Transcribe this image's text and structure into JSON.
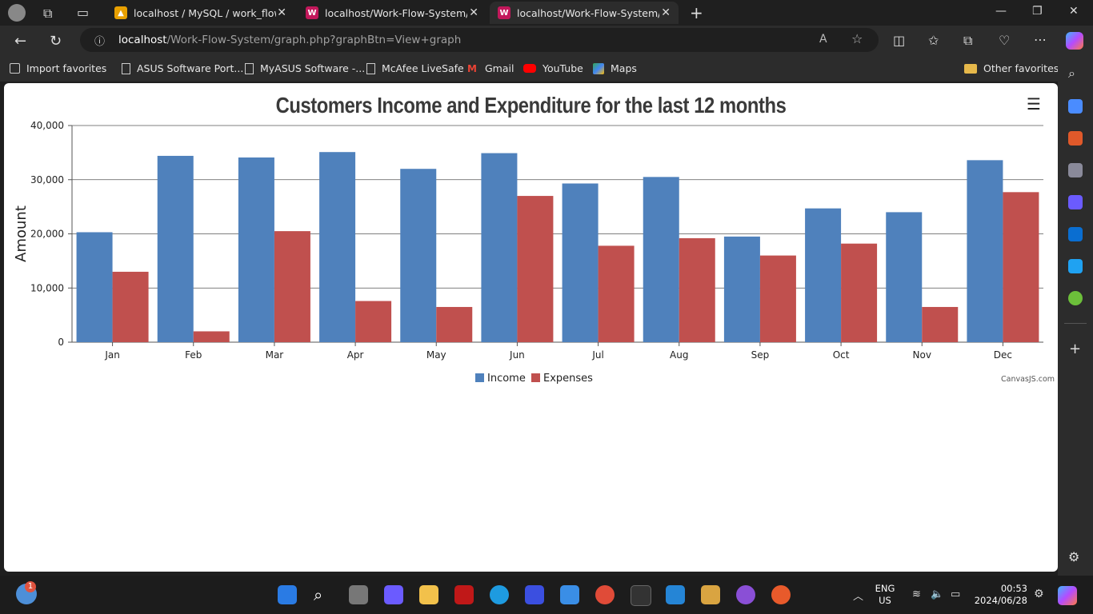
{
  "browser": {
    "tabs": [
      {
        "title": "localhost / MySQL / work_flow_sy",
        "color": "#e8a000"
      },
      {
        "title": "localhost/Work-Flow-System/set",
        "color": "#c2185b"
      },
      {
        "title": "localhost/Work-Flow-System/gra",
        "color": "#c2185b"
      }
    ],
    "url_host": "localhost",
    "url_path": "/Work-Flow-System/graph.php?graphBtn=View+graph",
    "favorites": [
      {
        "label": "Import favorites",
        "icon": "import-icon"
      },
      {
        "label": "ASUS Software Port...",
        "icon": "page-icon"
      },
      {
        "label": "MyASUS Software -...",
        "icon": "page-icon"
      },
      {
        "label": "McAfee LiveSafe",
        "icon": "page-icon"
      },
      {
        "label": "Gmail",
        "icon": "gmail-icon"
      },
      {
        "label": "YouTube",
        "icon": "youtube-icon"
      },
      {
        "label": "Maps",
        "icon": "maps-icon"
      }
    ],
    "other_favorites": "Other favorites"
  },
  "chart_data": {
    "type": "bar",
    "title": "Customers Income and Expenditure for the last 12 months",
    "ylabel": "Amount",
    "xlabel": "",
    "ylim": [
      0,
      40000
    ],
    "yticks": [
      "0",
      "10,000",
      "20,000",
      "30,000",
      "40,000"
    ],
    "ytick_values": [
      0,
      10000,
      20000,
      30000,
      40000
    ],
    "grid": true,
    "legend_position": "bottom-center",
    "categories": [
      "Jan",
      "Feb",
      "Mar",
      "Apr",
      "May",
      "Jun",
      "Jul",
      "Aug",
      "Sep",
      "Oct",
      "Nov",
      "Dec"
    ],
    "series": [
      {
        "name": "Income",
        "color": "#4f81bc",
        "values": [
          20300,
          34400,
          34100,
          35100,
          32000,
          34900,
          29300,
          30500,
          19500,
          24700,
          24000,
          33600
        ]
      },
      {
        "name": "Expenses",
        "color": "#c0504e",
        "values": [
          13000,
          2000,
          20500,
          7600,
          6500,
          27000,
          17800,
          19200,
          16000,
          18200,
          6500,
          27700
        ]
      }
    ],
    "credit": "CanvasJS.com"
  },
  "taskbar": {
    "lang": "ENG",
    "region": "US",
    "time": "00:53",
    "date": "2024/06/28",
    "weather_badge": "1"
  }
}
